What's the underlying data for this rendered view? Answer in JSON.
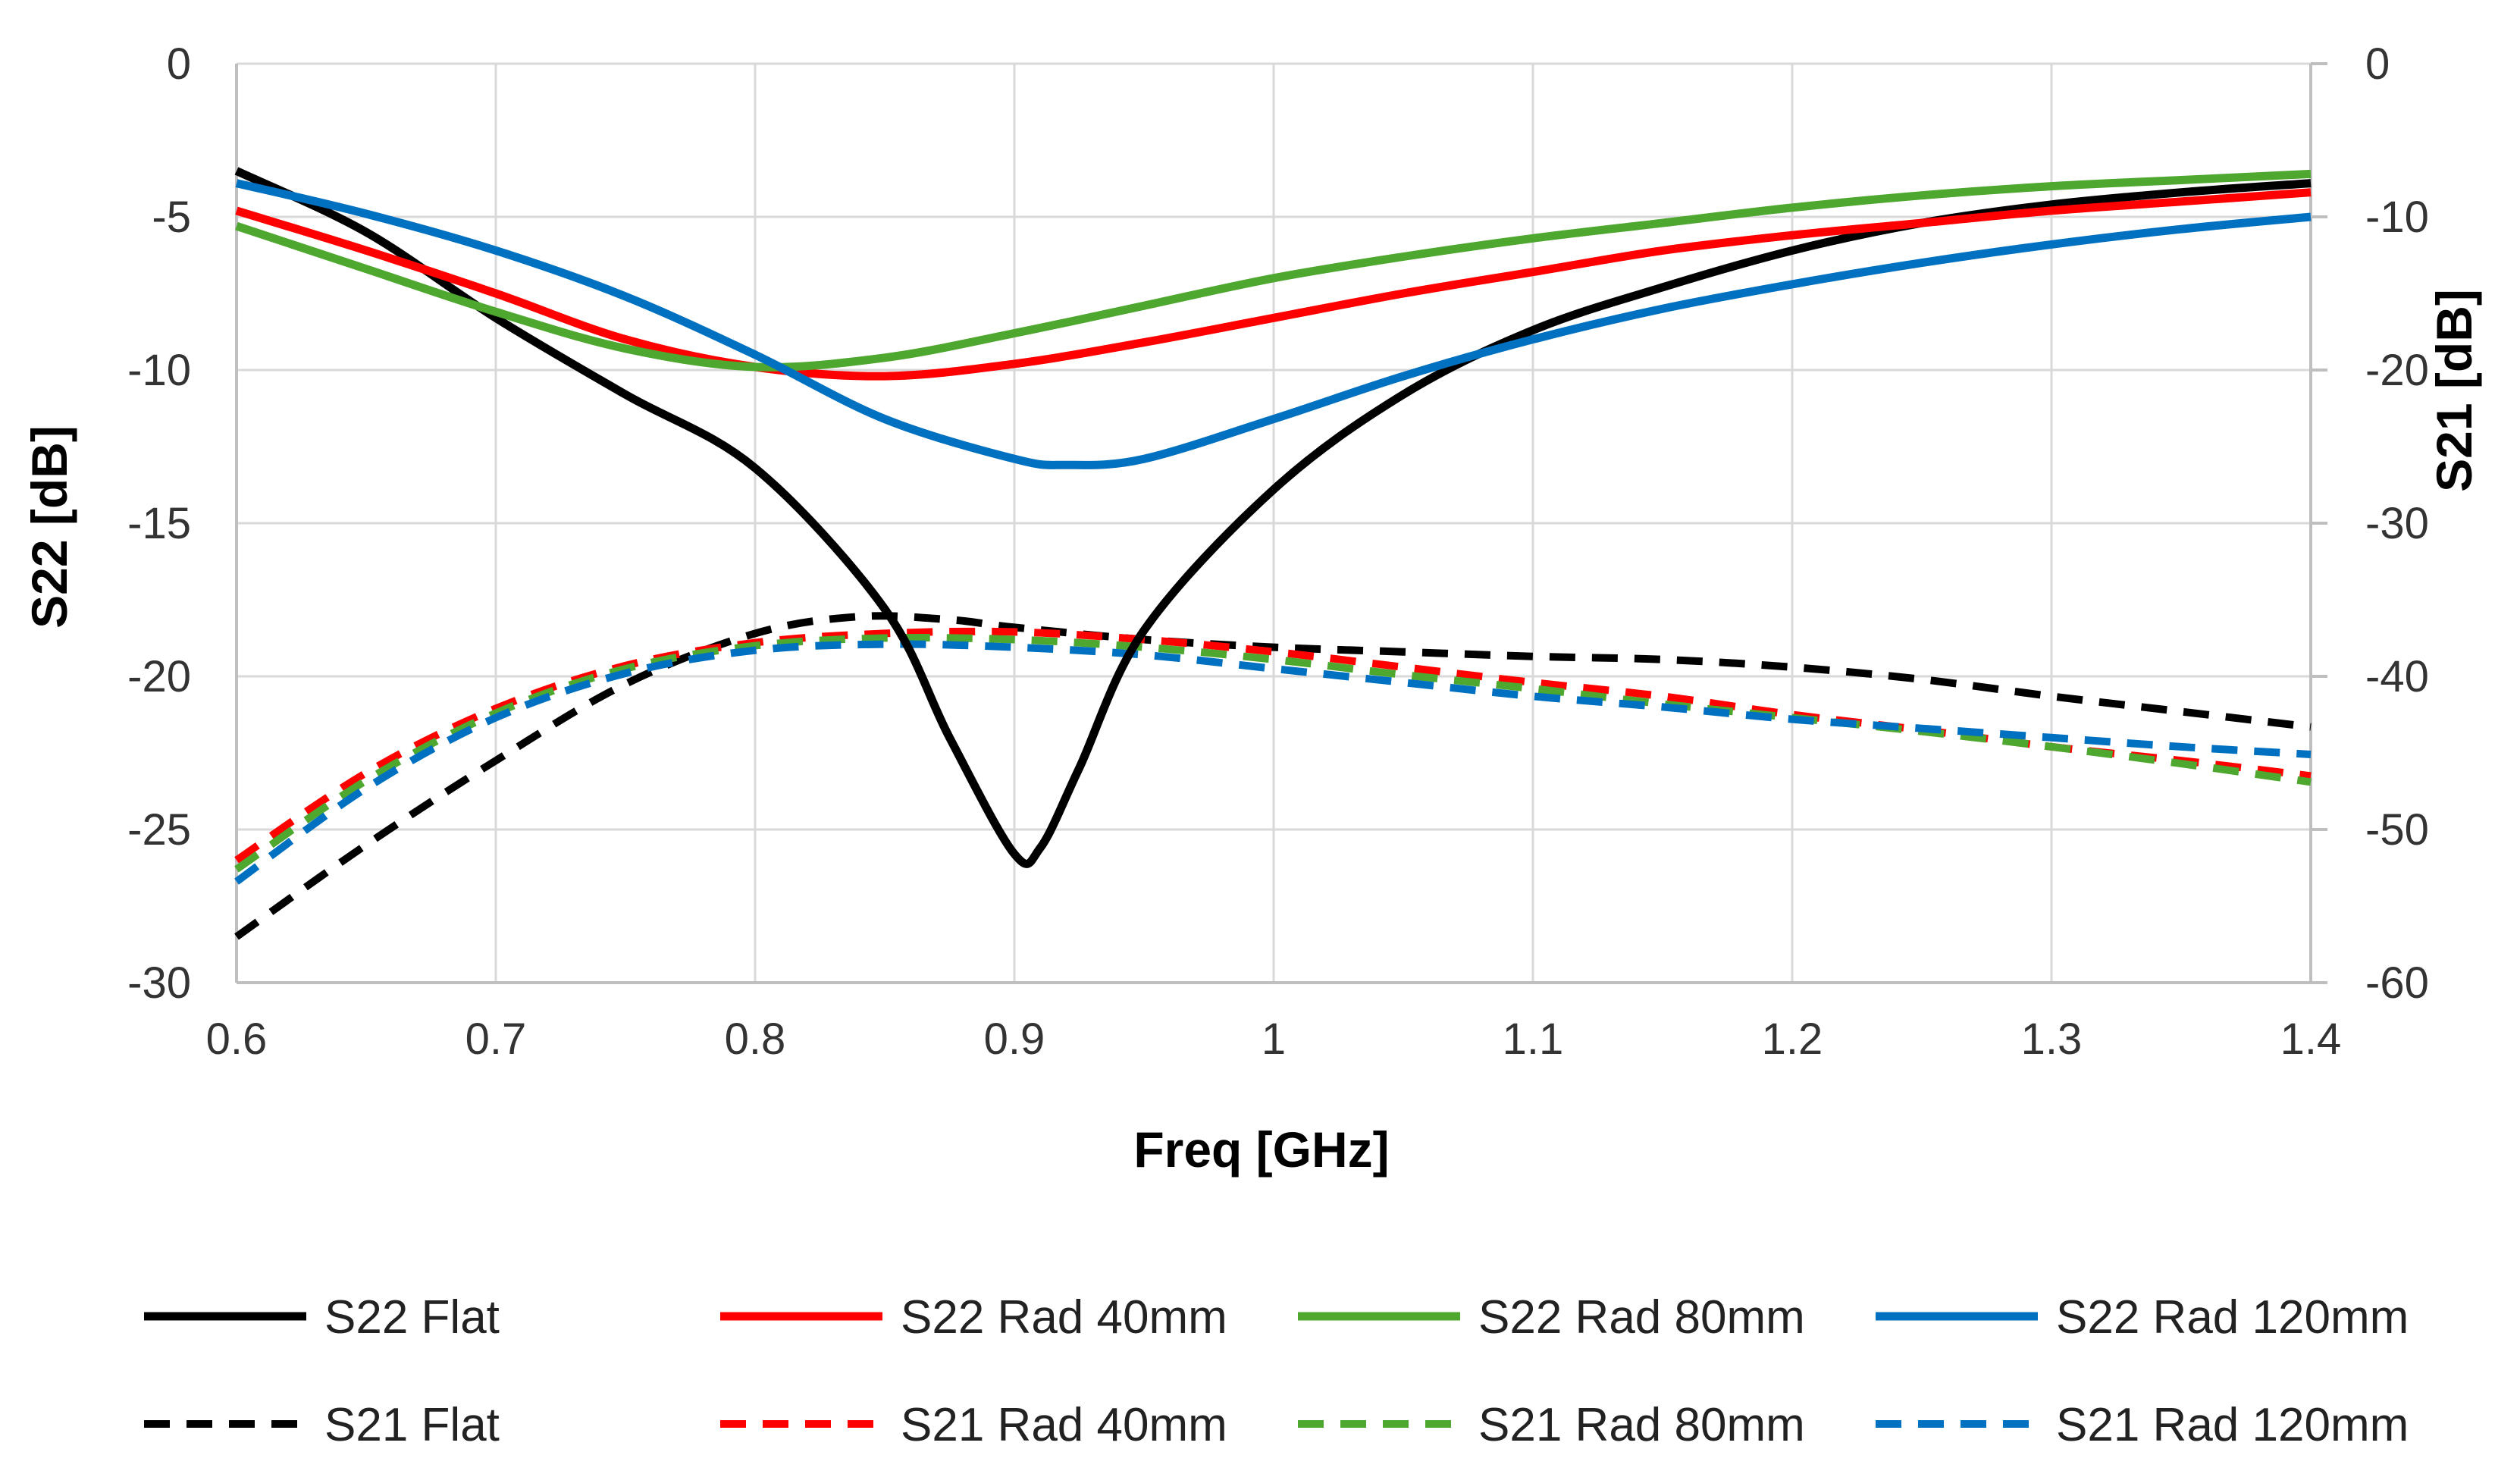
{
  "chart_data": {
    "type": "line",
    "xlabel": "Freq [GHz]",
    "ylabel_left": "S22 [dB]",
    "ylabel_right": "S21 [dB]",
    "xlim": [
      0.6,
      1.4
    ],
    "ylim_left": [
      -30,
      0
    ],
    "ylim_right": [
      -60,
      0
    ],
    "x_ticks": [
      "0.6",
      "0.7",
      "0.8",
      "0.9",
      "1",
      "1.1",
      "1.2",
      "1.3",
      "1.4"
    ],
    "y_left_ticks": [
      "0",
      "-5",
      "-10",
      "-15",
      "-20",
      "-25",
      "-30"
    ],
    "y_right_ticks": [
      "0",
      "-10",
      "-20",
      "-30",
      "-40",
      "-50",
      "-60"
    ],
    "grid": true,
    "legend_position": "bottom",
    "series": [
      {
        "name": "S22 Flat",
        "axis": "left",
        "style": "solid",
        "color": "#000000",
        "x": [
          0.6,
          0.65,
          0.7,
          0.75,
          0.8,
          0.85,
          0.875,
          0.9,
          0.91,
          0.925,
          0.95,
          1.0,
          1.05,
          1.1,
          1.15,
          1.2,
          1.25,
          1.3,
          1.35,
          1.4
        ],
        "y": [
          -3.5,
          -5.5,
          -8.3,
          -10.8,
          -13.2,
          -17.8,
          -22.0,
          -25.8,
          -25.6,
          -23.0,
          -18.5,
          -13.9,
          -10.8,
          -8.7,
          -7.3,
          -6.1,
          -5.2,
          -4.6,
          -4.2,
          -3.9
        ]
      },
      {
        "name": "S22 Rad 40mm",
        "axis": "left",
        "style": "solid",
        "color": "#ff0000",
        "x": [
          0.6,
          0.65,
          0.7,
          0.75,
          0.8,
          0.85,
          0.9,
          0.95,
          1.0,
          1.05,
          1.1,
          1.15,
          1.2,
          1.25,
          1.3,
          1.35,
          1.4
        ],
        "y": [
          -4.8,
          -6.1,
          -7.5,
          -9.0,
          -9.9,
          -10.2,
          -9.8,
          -9.1,
          -8.3,
          -7.5,
          -6.8,
          -6.1,
          -5.6,
          -5.2,
          -4.8,
          -4.5,
          -4.2
        ]
      },
      {
        "name": "S22 Rad 80mm",
        "axis": "left",
        "style": "solid",
        "color": "#4ea72e",
        "x": [
          0.6,
          0.65,
          0.7,
          0.75,
          0.8,
          0.85,
          0.9,
          0.95,
          1.0,
          1.05,
          1.1,
          1.15,
          1.2,
          1.25,
          1.3,
          1.35,
          1.4
        ],
        "y": [
          -5.3,
          -6.7,
          -8.1,
          -9.3,
          -9.9,
          -9.6,
          -8.8,
          -7.9,
          -7.0,
          -6.3,
          -5.7,
          -5.2,
          -4.7,
          -4.3,
          -4.0,
          -3.8,
          -3.6
        ]
      },
      {
        "name": "S22 Rad 120mm",
        "axis": "left",
        "style": "solid",
        "color": "#0070c0",
        "x": [
          0.6,
          0.65,
          0.7,
          0.75,
          0.8,
          0.85,
          0.9,
          0.92,
          0.95,
          1.0,
          1.05,
          1.1,
          1.15,
          1.2,
          1.25,
          1.3,
          1.35,
          1.4
        ],
        "y": [
          -3.9,
          -4.9,
          -6.1,
          -7.6,
          -9.5,
          -11.6,
          -12.9,
          -13.1,
          -12.9,
          -11.6,
          -10.2,
          -9.0,
          -8.0,
          -7.2,
          -6.5,
          -5.9,
          -5.4,
          -5.0
        ]
      },
      {
        "name": "S21 Flat",
        "axis": "right",
        "style": "dashed",
        "color": "#000000",
        "x": [
          0.6,
          0.65,
          0.7,
          0.75,
          0.8,
          0.84,
          0.875,
          0.9,
          0.95,
          1.0,
          1.05,
          1.1,
          1.15,
          1.2,
          1.25,
          1.3,
          1.35,
          1.4
        ],
        "y": [
          -57.0,
          -51.0,
          -45.5,
          -40.5,
          -37.2,
          -36.1,
          -36.3,
          -36.8,
          -37.6,
          -38.1,
          -38.4,
          -38.7,
          -38.9,
          -39.4,
          -40.2,
          -41.3,
          -42.3,
          -43.3
        ]
      },
      {
        "name": "S21 Rad 40mm",
        "axis": "right",
        "style": "dashed",
        "color": "#ff0000",
        "x": [
          0.6,
          0.65,
          0.7,
          0.75,
          0.8,
          0.85,
          0.9,
          0.95,
          1.0,
          1.05,
          1.1,
          1.15,
          1.2,
          1.25,
          1.3,
          1.35,
          1.4
        ],
        "y": [
          -52.0,
          -46.3,
          -42.1,
          -39.3,
          -37.8,
          -37.2,
          -37.1,
          -37.6,
          -38.4,
          -39.4,
          -40.4,
          -41.3,
          -42.5,
          -43.5,
          -44.6,
          -45.5,
          -46.5
        ]
      },
      {
        "name": "S21 Rad 80mm",
        "axis": "right",
        "style": "dashed",
        "color": "#4ea72e",
        "x": [
          0.6,
          0.65,
          0.7,
          0.75,
          0.8,
          0.85,
          0.9,
          0.95,
          1.0,
          1.05,
          1.1,
          1.15,
          1.2,
          1.25,
          1.3,
          1.35,
          1.4
        ],
        "y": [
          -52.6,
          -46.8,
          -42.4,
          -39.5,
          -38.0,
          -37.5,
          -37.6,
          -38.1,
          -38.9,
          -39.9,
          -40.8,
          -41.8,
          -42.7,
          -43.6,
          -44.6,
          -45.7,
          -46.9
        ]
      },
      {
        "name": "S21 Rad 120mm",
        "axis": "right",
        "style": "dashed",
        "color": "#0070c0",
        "x": [
          0.6,
          0.65,
          0.7,
          0.75,
          0.8,
          0.85,
          0.9,
          0.95,
          1.0,
          1.05,
          1.1,
          1.15,
          1.2,
          1.25,
          1.3,
          1.35,
          1.4
        ],
        "y": [
          -53.4,
          -47.3,
          -42.7,
          -39.8,
          -38.3,
          -37.9,
          -38.1,
          -38.6,
          -39.5,
          -40.4,
          -41.3,
          -42.0,
          -42.8,
          -43.4,
          -44.0,
          -44.6,
          -45.1
        ]
      }
    ]
  }
}
